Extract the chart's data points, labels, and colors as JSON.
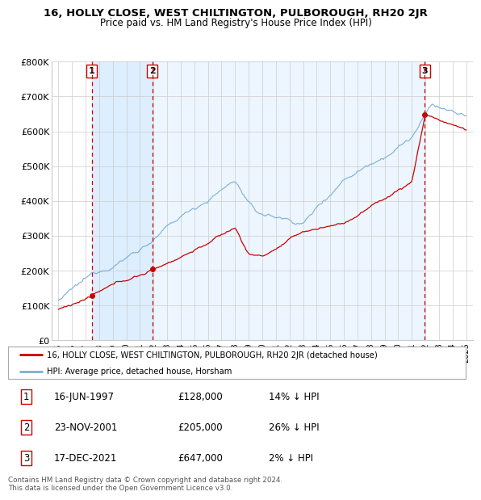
{
  "title": "16, HOLLY CLOSE, WEST CHILTINGTON, PULBOROUGH, RH20 2JR",
  "subtitle": "Price paid vs. HM Land Registry's House Price Index (HPI)",
  "ylim": [
    0,
    800000
  ],
  "yticks": [
    0,
    100000,
    200000,
    300000,
    400000,
    500000,
    600000,
    700000,
    800000
  ],
  "ytick_labels": [
    "£0",
    "£100K",
    "£200K",
    "£300K",
    "£400K",
    "£500K",
    "£600K",
    "£700K",
    "£800K"
  ],
  "sale_dates": [
    1997.46,
    2001.9,
    2021.96
  ],
  "sale_prices": [
    128000,
    205000,
    647000
  ],
  "sale_labels": [
    "1",
    "2",
    "3"
  ],
  "line_color_red": "#cc0000",
  "line_color_blue": "#7aafd4",
  "vline_color": "#cc0000",
  "shade_color": "#ddeeff",
  "background_color": "#ffffff",
  "grid_color": "#cccccc",
  "legend_entries": [
    "16, HOLLY CLOSE, WEST CHILTINGTON, PULBOROUGH, RH20 2JR (detached house)",
    "HPI: Average price, detached house, Horsham"
  ],
  "table_rows": [
    [
      "1",
      "16-JUN-1997",
      "£128,000",
      "14% ↓ HPI"
    ],
    [
      "2",
      "23-NOV-2001",
      "£205,000",
      "26% ↓ HPI"
    ],
    [
      "3",
      "17-DEC-2021",
      "£647,000",
      "2% ↓ HPI"
    ]
  ],
  "footer": "Contains HM Land Registry data © Crown copyright and database right 2024.\nThis data is licensed under the Open Government Licence v3.0.",
  "xmin": 1994.5,
  "xmax": 2025.5
}
